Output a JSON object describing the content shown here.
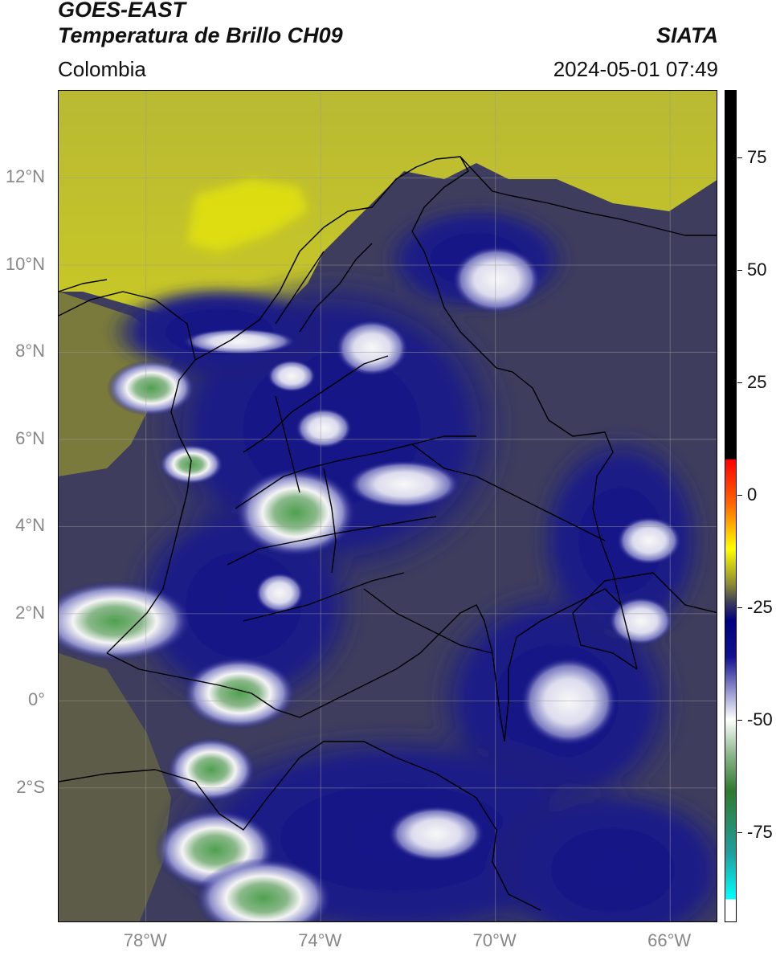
{
  "header": {
    "title_line1": "GOES-EAST",
    "title_line2": "Temperatura de Brillo CH09",
    "region": "Colombia",
    "organization": "SIATA",
    "datetime": "2024-05-01 07:49"
  },
  "map": {
    "lat_range": [
      -5.1,
      14.0
    ],
    "lon_range": [
      -80.0,
      -64.9
    ],
    "lat_ticks": [
      {
        "value": 12,
        "label": "12°N"
      },
      {
        "value": 10,
        "label": "10°N"
      },
      {
        "value": 8,
        "label": "8°N"
      },
      {
        "value": 6,
        "label": "6°N"
      },
      {
        "value": 4,
        "label": "4°N"
      },
      {
        "value": 2,
        "label": "2°N"
      },
      {
        "value": 0,
        "label": "0°"
      },
      {
        "value": -2,
        "label": "2°S"
      }
    ],
    "lon_ticks": [
      {
        "value": -78,
        "label": "78°W"
      },
      {
        "value": -74,
        "label": "74°W"
      },
      {
        "value": -70,
        "label": "70°W"
      },
      {
        "value": -66,
        "label": "66°W"
      }
    ],
    "grid": true,
    "colors": {
      "warm_background": "#3e3d5e",
      "dry_upper": "#bcbc1e",
      "dry_bright": "#e0e000",
      "moist": "#1a1a8a",
      "cloud_cold": "#f2f2f2",
      "cloud_coldest": "#4ea04e"
    }
  },
  "colorbar": {
    "range": [
      -95,
      90
    ],
    "ticks": [
      {
        "value": 75,
        "label": "75"
      },
      {
        "value": 50,
        "label": "50"
      },
      {
        "value": 25,
        "label": "25"
      },
      {
        "value": 0,
        "label": "0"
      },
      {
        "value": -25,
        "label": "-25"
      },
      {
        "value": -50,
        "label": "-50"
      },
      {
        "value": -75,
        "label": "-75"
      }
    ],
    "stops": [
      {
        "value": 90,
        "color": "#000000"
      },
      {
        "value": 8,
        "color": "#000000"
      },
      {
        "value": 7.9,
        "color": "#ff0000"
      },
      {
        "value": -2,
        "color": "#ff6600"
      },
      {
        "value": -12,
        "color": "#ffff00"
      },
      {
        "value": -20,
        "color": "#8a8a33"
      },
      {
        "value": -24,
        "color": "#3c3c5a"
      },
      {
        "value": -28,
        "color": "#000080"
      },
      {
        "value": -36,
        "color": "#101090"
      },
      {
        "value": -44,
        "color": "#9a9ad0"
      },
      {
        "value": -50,
        "color": "#ffffff"
      },
      {
        "value": -58,
        "color": "#8ab58a"
      },
      {
        "value": -66,
        "color": "#2f7a2f"
      },
      {
        "value": -80,
        "color": "#20a0a0"
      },
      {
        "value": -90,
        "color": "#00ffff"
      },
      {
        "value": -90.1,
        "color": "#ffffff"
      },
      {
        "value": -95,
        "color": "#ffffff"
      }
    ]
  }
}
